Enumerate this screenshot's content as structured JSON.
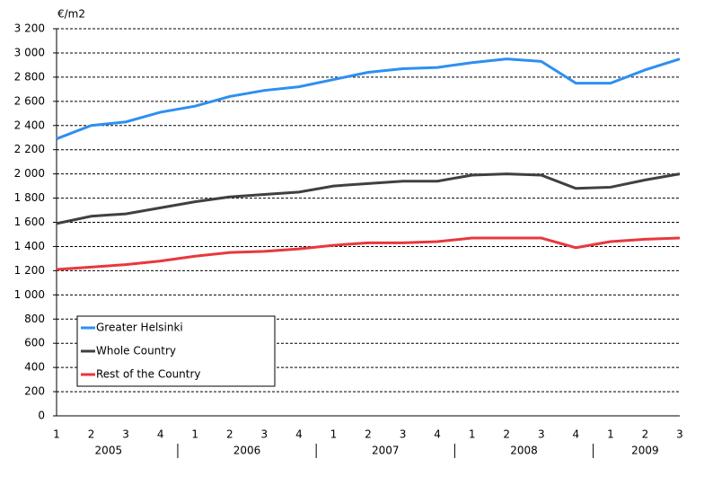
{
  "chart_data": {
    "type": "line",
    "y_label": "€/m2",
    "categories": [
      "1",
      "2",
      "3",
      "4",
      "1",
      "2",
      "3",
      "4",
      "1",
      "2",
      "3",
      "4",
      "1",
      "2",
      "3",
      "4",
      "1",
      "2",
      "3"
    ],
    "years": [
      "2005",
      "2006",
      "2007",
      "2008",
      "2009"
    ],
    "series": [
      {
        "name": "Greater Helsinki",
        "color": "#2e8ff0",
        "values": [
          2290,
          2400,
          2430,
          2510,
          2560,
          2640,
          2690,
          2720,
          2780,
          2840,
          2870,
          2880,
          2920,
          2950,
          2930,
          2750,
          2750,
          2860,
          2950
        ]
      },
      {
        "name": "Whole Country",
        "color": "#404040",
        "values": [
          1590,
          1650,
          1670,
          1720,
          1770,
          1810,
          1830,
          1850,
          1900,
          1920,
          1940,
          1940,
          1990,
          2000,
          1990,
          1880,
          1890,
          1950,
          2000
        ]
      },
      {
        "name": "Rest of the Country",
        "color": "#e8383d",
        "values": [
          1210,
          1230,
          1250,
          1280,
          1320,
          1350,
          1360,
          1380,
          1410,
          1430,
          1430,
          1440,
          1470,
          1470,
          1470,
          1390,
          1440,
          1460,
          1470
        ]
      }
    ],
    "ylim": [
      0,
      3200
    ],
    "yticks": [
      0,
      200,
      400,
      600,
      800,
      {
        "value": 1000,
        "label": "1 000"
      },
      {
        "value": 1200,
        "label": "1 200"
      },
      {
        "value": 1400,
        "label": "1 400"
      },
      {
        "value": 1600,
        "label": "1 600"
      },
      {
        "value": 1800,
        "label": "1 800"
      },
      {
        "value": 2000,
        "label": "2 000"
      },
      {
        "value": 2200,
        "label": "2 200"
      },
      {
        "value": 2400,
        "label": "2 400"
      },
      {
        "value": 2600,
        "label": "2 600"
      },
      {
        "value": 2800,
        "label": "2 800"
      },
      {
        "value": 3000,
        "label": "3 000"
      },
      {
        "value": 3200,
        "label": "3 200"
      }
    ],
    "grid": true,
    "legend": "lower left"
  }
}
